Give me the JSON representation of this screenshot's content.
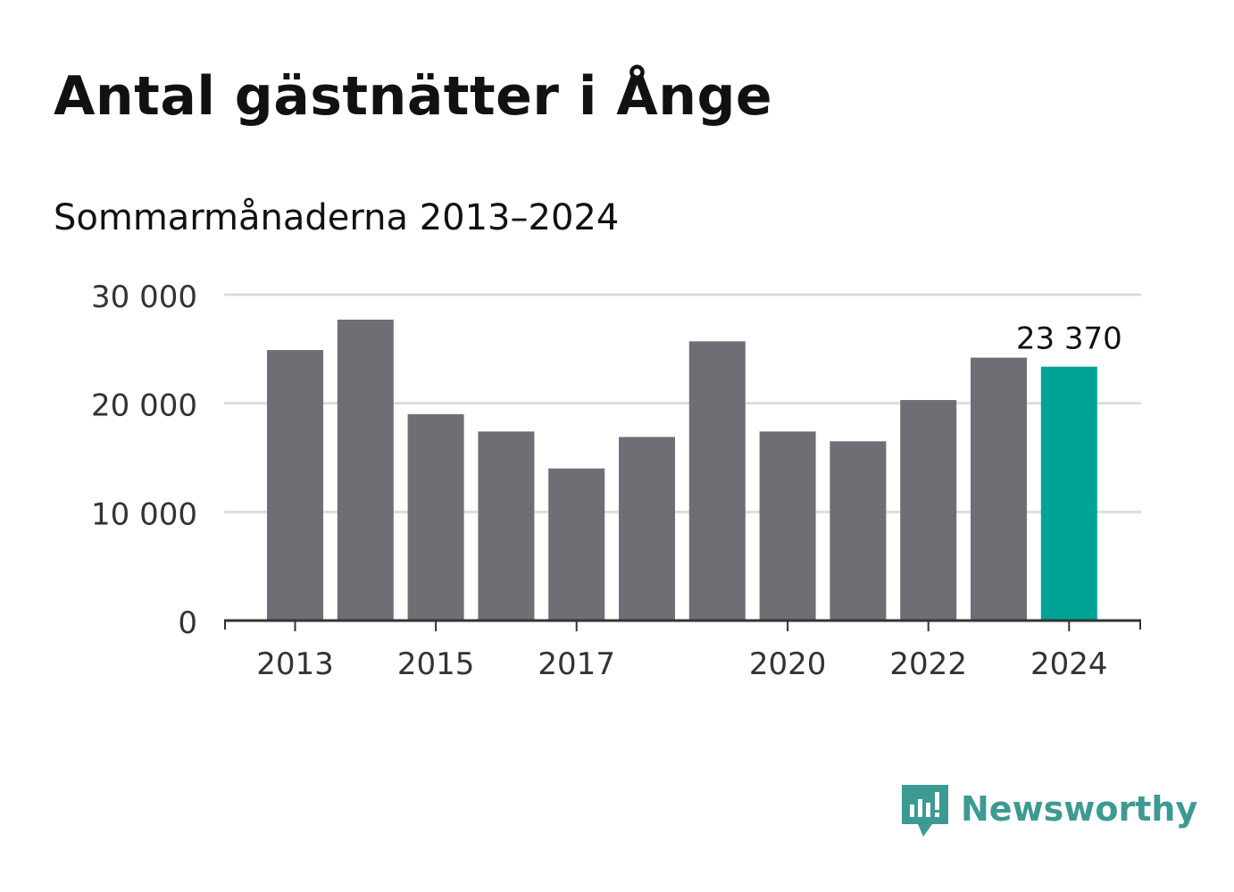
{
  "title": "Antal gästnätter i Ånge",
  "subtitle": "Sommarmånaderna 2013–2024",
  "chart_data": {
    "type": "bar",
    "title": "Antal gästnätter i Ånge",
    "subtitle": "Sommarmånaderna 2013–2024",
    "xlabel": "",
    "ylabel": "",
    "categories": [
      "2013",
      "2014",
      "2015",
      "2016",
      "2017",
      "2018",
      "2019",
      "2020",
      "2021",
      "2022",
      "2023",
      "2024"
    ],
    "x_tick_labels": [
      "2013",
      "2015",
      "2017",
      "2020",
      "2022",
      "2024"
    ],
    "values": [
      24900,
      27700,
      19000,
      17400,
      14000,
      16900,
      25700,
      17400,
      16500,
      20300,
      24200,
      23370
    ],
    "highlight_index": 11,
    "highlight_label": "23 370",
    "ylim": [
      0,
      30000
    ],
    "y_ticks": [
      0,
      10000,
      20000,
      30000
    ],
    "y_tick_labels": [
      "0",
      "10 000",
      "20 000",
      "30 000"
    ],
    "grid": true,
    "legend": "none",
    "colors": {
      "bar": "#6f6e74",
      "highlight": "#00a396",
      "grid": "#dddddd",
      "axis": "#333333",
      "tick_text": "#333333"
    }
  },
  "brand": {
    "name": "Newsworthy",
    "icon": "newsworthy-logo-icon",
    "color": "#3d9a93"
  }
}
